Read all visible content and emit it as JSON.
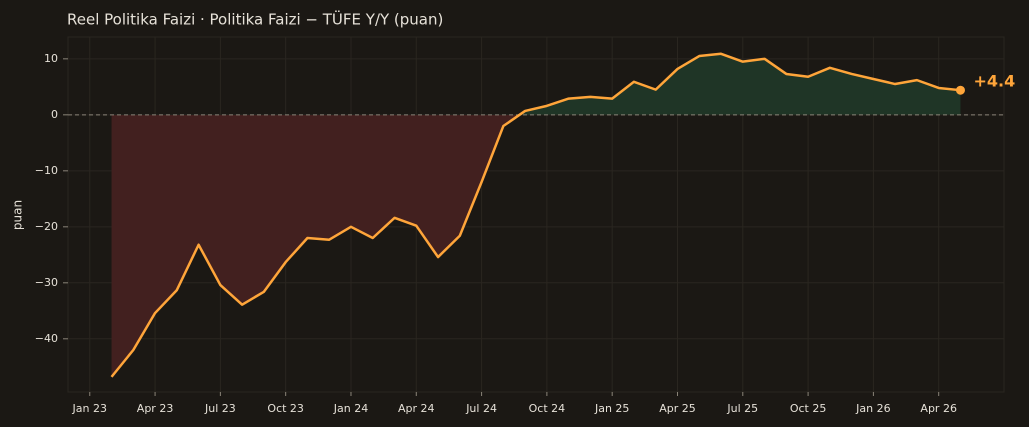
{
  "chart_data": {
    "type": "line",
    "title": "Reel Politika Faizi · Politika Faizi − TÜFE Y/Y (puan)",
    "y_label": "puan",
    "x": [
      "2023-02",
      "2023-03",
      "2023-04",
      "2023-05",
      "2023-06",
      "2023-07",
      "2023-08",
      "2023-09",
      "2023-10",
      "2023-11",
      "2023-12",
      "2024-01",
      "2024-02",
      "2024-03",
      "2024-04",
      "2024-05",
      "2024-06",
      "2024-07",
      "2024-08",
      "2024-09",
      "2024-10",
      "2024-11",
      "2024-12",
      "2025-01",
      "2025-02",
      "2025-03",
      "2025-04",
      "2025-05",
      "2025-06",
      "2025-07",
      "2025-08",
      "2025-09",
      "2025-10",
      "2025-11",
      "2025-12",
      "2026-01",
      "2026-02",
      "2026-03",
      "2026-04",
      "2026-05"
    ],
    "series": [
      {
        "color": "#ffa53a",
        "values": [
          -46.8,
          -42,
          -35.4,
          -31.3,
          -23.2,
          -30.4,
          -33.9,
          -31.6,
          -26.3,
          -22,
          -22.3,
          -20,
          -22,
          -18.4,
          -19.8,
          -25.4,
          -21.6,
          -12,
          -2,
          0.7,
          1.6,
          2.9,
          3.2,
          2.9,
          5.9,
          4.5,
          8.2,
          10.5,
          10.9,
          9.5,
          10,
          7.3,
          6.8,
          8.4,
          7.3,
          6.4,
          5.5,
          6.2,
          4.8,
          4.4
        ]
      }
    ],
    "end_label": "+4.4",
    "positive_fill": "#1f3526",
    "negative_fill": "#42201f",
    "xlim": [
      "2022-12",
      "2026-07"
    ],
    "xticks": [
      {
        "value": "2023-01",
        "label": "Jan 23"
      },
      {
        "value": "2023-04",
        "label": "Apr 23"
      },
      {
        "value": "2023-07",
        "label": "Jul 23"
      },
      {
        "value": "2023-10",
        "label": "Oct 23"
      },
      {
        "value": "2024-01",
        "label": "Jan 24"
      },
      {
        "value": "2024-04",
        "label": "Apr 24"
      },
      {
        "value": "2024-07",
        "label": "Jul 24"
      },
      {
        "value": "2024-10",
        "label": "Oct 24"
      },
      {
        "value": "2025-01",
        "label": "Jan 25"
      },
      {
        "value": "2025-04",
        "label": "Apr 25"
      },
      {
        "value": "2025-07",
        "label": "Jul 25"
      },
      {
        "value": "2025-10",
        "label": "Oct 25"
      },
      {
        "value": "2026-01",
        "label": "Jan 26"
      },
      {
        "value": "2026-04",
        "label": "Apr 26"
      }
    ],
    "ylim": [
      -49.5,
      13.9
    ],
    "yticks": [
      {
        "value": -40,
        "label": "−40"
      },
      {
        "value": -30,
        "label": "−30"
      },
      {
        "value": -20,
        "label": "−20"
      },
      {
        "value": -10,
        "label": "−10"
      },
      0,
      10
    ],
    "grid": true
  }
}
